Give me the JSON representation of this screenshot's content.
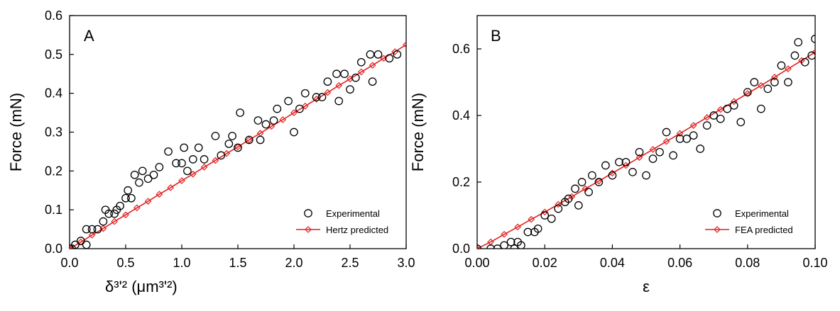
{
  "chart_data": [
    {
      "type": "scatter",
      "panel_label": "A",
      "xlabel": "δ³ʹ² (μm³ʹ²)",
      "ylabel": "Force  (mN)",
      "xlim": [
        0,
        3.0
      ],
      "ylim": [
        0,
        0.6
      ],
      "xticks": [
        "0.0",
        "0.5",
        "1.0",
        "1.5",
        "2.0",
        "2.5",
        "3.0"
      ],
      "yticks": [
        "0.0",
        "0.1",
        "0.2",
        "0.3",
        "0.4",
        "0.5",
        "0.6"
      ],
      "legend_position": "bottom-right",
      "series": [
        {
          "name": "Experimental",
          "style": "open-circle",
          "color": "#000000",
          "points": [
            [
              0.0,
              0.0
            ],
            [
              0.02,
              0.0
            ],
            [
              0.05,
              0.01
            ],
            [
              0.1,
              0.02
            ],
            [
              0.15,
              0.01
            ],
            [
              0.15,
              0.05
            ],
            [
              0.2,
              0.05
            ],
            [
              0.25,
              0.05
            ],
            [
              0.3,
              0.07
            ],
            [
              0.32,
              0.1
            ],
            [
              0.35,
              0.09
            ],
            [
              0.4,
              0.09
            ],
            [
              0.42,
              0.1
            ],
            [
              0.45,
              0.11
            ],
            [
              0.5,
              0.13
            ],
            [
              0.52,
              0.15
            ],
            [
              0.55,
              0.13
            ],
            [
              0.58,
              0.19
            ],
            [
              0.62,
              0.17
            ],
            [
              0.65,
              0.2
            ],
            [
              0.7,
              0.18
            ],
            [
              0.75,
              0.19
            ],
            [
              0.8,
              0.21
            ],
            [
              0.88,
              0.25
            ],
            [
              0.95,
              0.22
            ],
            [
              1.0,
              0.22
            ],
            [
              1.02,
              0.26
            ],
            [
              1.05,
              0.2
            ],
            [
              1.1,
              0.23
            ],
            [
              1.15,
              0.26
            ],
            [
              1.2,
              0.23
            ],
            [
              1.3,
              0.29
            ],
            [
              1.35,
              0.24
            ],
            [
              1.42,
              0.27
            ],
            [
              1.45,
              0.29
            ],
            [
              1.5,
              0.26
            ],
            [
              1.52,
              0.35
            ],
            [
              1.6,
              0.28
            ],
            [
              1.68,
              0.33
            ],
            [
              1.7,
              0.28
            ],
            [
              1.75,
              0.32
            ],
            [
              1.82,
              0.33
            ],
            [
              1.85,
              0.36
            ],
            [
              1.95,
              0.38
            ],
            [
              2.0,
              0.3
            ],
            [
              2.05,
              0.36
            ],
            [
              2.1,
              0.4
            ],
            [
              2.2,
              0.39
            ],
            [
              2.25,
              0.39
            ],
            [
              2.3,
              0.43
            ],
            [
              2.38,
              0.45
            ],
            [
              2.4,
              0.38
            ],
            [
              2.45,
              0.45
            ],
            [
              2.5,
              0.41
            ],
            [
              2.55,
              0.44
            ],
            [
              2.6,
              0.48
            ],
            [
              2.68,
              0.5
            ],
            [
              2.7,
              0.43
            ],
            [
              2.75,
              0.5
            ],
            [
              2.85,
              0.49
            ],
            [
              2.92,
              0.5
            ]
          ]
        },
        {
          "name": "Hertz predicted",
          "style": "line-diamond",
          "color": "#e02020",
          "points": [
            [
              0.0,
              0.0
            ],
            [
              0.1,
              0.017
            ],
            [
              0.2,
              0.035
            ],
            [
              0.3,
              0.052
            ],
            [
              0.4,
              0.07
            ],
            [
              0.5,
              0.087
            ],
            [
              0.6,
              0.105
            ],
            [
              0.7,
              0.122
            ],
            [
              0.8,
              0.14
            ],
            [
              0.9,
              0.157
            ],
            [
              1.0,
              0.175
            ],
            [
              1.1,
              0.192
            ],
            [
              1.2,
              0.21
            ],
            [
              1.3,
              0.227
            ],
            [
              1.4,
              0.245
            ],
            [
              1.5,
              0.262
            ],
            [
              1.6,
              0.28
            ],
            [
              1.7,
              0.297
            ],
            [
              1.8,
              0.315
            ],
            [
              1.9,
              0.332
            ],
            [
              2.0,
              0.35
            ],
            [
              2.1,
              0.367
            ],
            [
              2.2,
              0.385
            ],
            [
              2.3,
              0.402
            ],
            [
              2.4,
              0.42
            ],
            [
              2.5,
              0.437
            ],
            [
              2.6,
              0.455
            ],
            [
              2.7,
              0.472
            ],
            [
              2.8,
              0.49
            ],
            [
              2.9,
              0.507
            ],
            [
              3.0,
              0.525
            ]
          ]
        }
      ]
    },
    {
      "type": "scatter",
      "panel_label": "B",
      "xlabel": "ε",
      "ylabel": "Force  (mN)",
      "xlim": [
        0,
        0.1
      ],
      "ylim": [
        0,
        0.7
      ],
      "xticks": [
        "0.00",
        "0.02",
        "0.04",
        "0.06",
        "0.08",
        "0.10"
      ],
      "yticks": [
        "0.0",
        "0.2",
        "0.4",
        "0.6"
      ],
      "legend_position": "bottom-right",
      "series": [
        {
          "name": "Experimental",
          "style": "open-circle",
          "color": "#000000",
          "points": [
            [
              0.0,
              0.0
            ],
            [
              0.004,
              0.0
            ],
            [
              0.006,
              0.0
            ],
            [
              0.008,
              0.01
            ],
            [
              0.01,
              0.02
            ],
            [
              0.011,
              0.0
            ],
            [
              0.012,
              0.02
            ],
            [
              0.013,
              0.01
            ],
            [
              0.015,
              0.05
            ],
            [
              0.017,
              0.05
            ],
            [
              0.018,
              0.06
            ],
            [
              0.02,
              0.1
            ],
            [
              0.022,
              0.09
            ],
            [
              0.024,
              0.12
            ],
            [
              0.026,
              0.14
            ],
            [
              0.027,
              0.15
            ],
            [
              0.029,
              0.18
            ],
            [
              0.03,
              0.13
            ],
            [
              0.031,
              0.2
            ],
            [
              0.033,
              0.17
            ],
            [
              0.034,
              0.22
            ],
            [
              0.036,
              0.2
            ],
            [
              0.038,
              0.25
            ],
            [
              0.04,
              0.22
            ],
            [
              0.042,
              0.26
            ],
            [
              0.044,
              0.26
            ],
            [
              0.046,
              0.23
            ],
            [
              0.048,
              0.29
            ],
            [
              0.05,
              0.22
            ],
            [
              0.052,
              0.27
            ],
            [
              0.054,
              0.29
            ],
            [
              0.056,
              0.35
            ],
            [
              0.058,
              0.28
            ],
            [
              0.06,
              0.33
            ],
            [
              0.062,
              0.33
            ],
            [
              0.064,
              0.34
            ],
            [
              0.066,
              0.3
            ],
            [
              0.068,
              0.37
            ],
            [
              0.07,
              0.4
            ],
            [
              0.072,
              0.39
            ],
            [
              0.074,
              0.42
            ],
            [
              0.076,
              0.43
            ],
            [
              0.078,
              0.38
            ],
            [
              0.08,
              0.47
            ],
            [
              0.082,
              0.5
            ],
            [
              0.084,
              0.42
            ],
            [
              0.086,
              0.48
            ],
            [
              0.088,
              0.5
            ],
            [
              0.09,
              0.55
            ],
            [
              0.092,
              0.5
            ],
            [
              0.094,
              0.58
            ],
            [
              0.095,
              0.62
            ],
            [
              0.097,
              0.56
            ],
            [
              0.099,
              0.58
            ],
            [
              0.1,
              0.63
            ]
          ]
        },
        {
          "name": "FEA predicted",
          "style": "line-diamond",
          "color": "#e02020",
          "points": [
            [
              0.0,
              0.0
            ],
            [
              0.004,
              0.02
            ],
            [
              0.008,
              0.043
            ],
            [
              0.012,
              0.065
            ],
            [
              0.016,
              0.088
            ],
            [
              0.02,
              0.11
            ],
            [
              0.024,
              0.133
            ],
            [
              0.028,
              0.156
            ],
            [
              0.032,
              0.18
            ],
            [
              0.036,
              0.203
            ],
            [
              0.04,
              0.227
            ],
            [
              0.044,
              0.25
            ],
            [
              0.048,
              0.274
            ],
            [
              0.052,
              0.298
            ],
            [
              0.056,
              0.322
            ],
            [
              0.06,
              0.346
            ],
            [
              0.064,
              0.37
            ],
            [
              0.068,
              0.394
            ],
            [
              0.072,
              0.418
            ],
            [
              0.076,
              0.442
            ],
            [
              0.08,
              0.466
            ],
            [
              0.084,
              0.49
            ],
            [
              0.088,
              0.515
            ],
            [
              0.092,
              0.54
            ],
            [
              0.096,
              0.565
            ],
            [
              0.1,
              0.59
            ]
          ]
        }
      ]
    }
  ]
}
